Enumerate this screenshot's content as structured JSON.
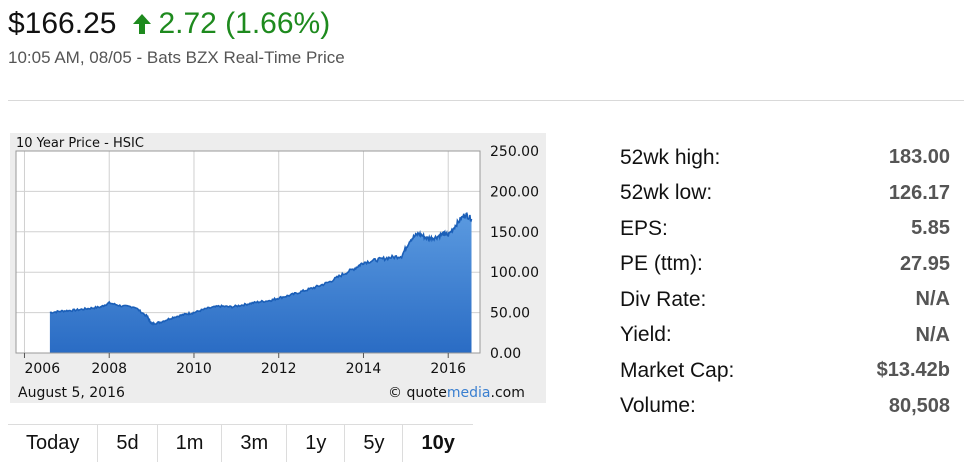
{
  "quote": {
    "price": "$166.25",
    "change": "2.72 (1.66%)",
    "direction_icon": "arrow-up-icon",
    "up_color": "#1e8a1e",
    "timestamp": "10:05 AM, 08/05 - Bats BZX Real-Time Price"
  },
  "chart_data": {
    "type": "area",
    "title": "10 Year Price - HSIC",
    "date_label": "August 5, 2016",
    "credit_prefix": "© quote",
    "credit_suffix": "media",
    "credit_tld": ".com",
    "fill_color": "#3a7fd0",
    "line_color": "#1b5fb8",
    "ylim": [
      0,
      250
    ],
    "y_ticks": [
      "250.00",
      "200.00",
      "150.00",
      "100.00",
      "50.00",
      "0.00"
    ],
    "x_ticks": [
      "2006",
      "2008",
      "2010",
      "2012",
      "2014",
      "2016"
    ],
    "x": [
      2006.6,
      2006.9,
      2007.2,
      2007.5,
      2007.8,
      2008.0,
      2008.3,
      2008.6,
      2008.9,
      2009.0,
      2009.2,
      2009.5,
      2009.8,
      2010.0,
      2010.3,
      2010.6,
      2010.9,
      2011.2,
      2011.5,
      2011.8,
      2012.0,
      2012.3,
      2012.6,
      2012.9,
      2013.2,
      2013.5,
      2013.8,
      2014.0,
      2014.3,
      2014.6,
      2014.9,
      2015.1,
      2015.3,
      2015.5,
      2015.7,
      2015.9,
      2016.0,
      2016.2,
      2016.4,
      2016.55
    ],
    "values": [
      50,
      52,
      53,
      55,
      57,
      62,
      58,
      57,
      45,
      36,
      38,
      44,
      48,
      50,
      55,
      58,
      57,
      60,
      63,
      65,
      68,
      72,
      77,
      82,
      88,
      97,
      105,
      112,
      115,
      118,
      120,
      140,
      148,
      142,
      143,
      148,
      146,
      160,
      172,
      166
    ]
  },
  "range_tabs": [
    {
      "label": "Today",
      "active": false
    },
    {
      "label": "5d",
      "active": false
    },
    {
      "label": "1m",
      "active": false
    },
    {
      "label": "3m",
      "active": false
    },
    {
      "label": "1y",
      "active": false
    },
    {
      "label": "5y",
      "active": false
    },
    {
      "label": "10y",
      "active": true
    }
  ],
  "stats": [
    {
      "label": "52wk high:",
      "value": "183.00"
    },
    {
      "label": "52wk low:",
      "value": "126.17"
    },
    {
      "label": "EPS:",
      "value": "5.85"
    },
    {
      "label": "PE (ttm):",
      "value": "27.95"
    },
    {
      "label": "Div Rate:",
      "value": "N/A"
    },
    {
      "label": "Yield:",
      "value": "N/A"
    },
    {
      "label": "Market Cap:",
      "value": "$13.42b"
    },
    {
      "label": "Volume:",
      "value": "80,508"
    }
  ]
}
